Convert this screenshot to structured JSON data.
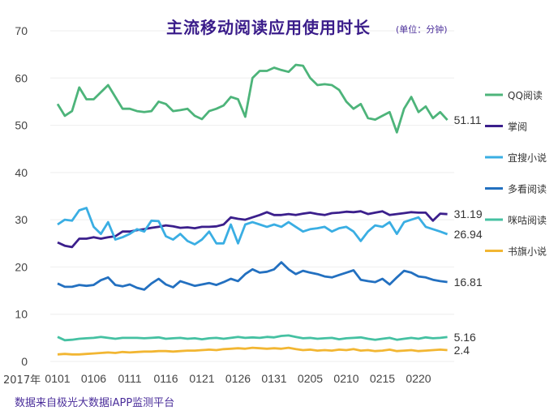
{
  "chart_data": {
    "type": "line",
    "title": "主流移动阅读应用使用时长",
    "unit": "(单位：分钟)",
    "source": "数据来自极光大数据iAPP监测平台",
    "x_prefix": "2017年",
    "x_tick_labels": [
      "0101",
      "0106",
      "0111",
      "0116",
      "0121",
      "0126",
      "0131",
      "0205",
      "0210",
      "0215",
      "0220"
    ],
    "x_start": "0101",
    "x_end": "0224",
    "ylim": [
      0,
      70
    ],
    "y_ticks": [
      "0",
      "10",
      "20",
      "30",
      "40",
      "50",
      "60",
      "70"
    ],
    "grid": true,
    "legend_position": "right",
    "series": [
      {
        "name": "QQ阅读",
        "color": "#4db47a",
        "end_label": "51.11",
        "values": [
          54.5,
          52,
          53,
          58,
          55.5,
          55.5,
          57,
          58.5,
          56,
          53.5,
          53.5,
          53,
          52.8,
          53,
          55,
          54.5,
          53,
          53.2,
          53.5,
          52,
          51.3,
          53,
          53.5,
          54.2,
          56,
          55.5,
          51.8,
          60,
          61.5,
          61.5,
          62.2,
          61.7,
          61.3,
          62.8,
          62.6,
          60,
          58.5,
          58.7,
          58.5,
          57.5,
          55,
          53.5,
          54.5,
          51.5,
          51.2,
          52,
          52.8,
          48.5,
          53.5,
          56,
          52.8,
          54,
          51.5,
          52.8,
          51.11
        ]
      },
      {
        "name": "掌阅",
        "color": "#3b1f8c",
        "end_label": "31.19",
        "values": [
          25.2,
          24.5,
          24.2,
          26,
          26,
          26.3,
          26,
          26.3,
          26.5,
          27.5,
          27.5,
          27.8,
          28,
          28.3,
          28.5,
          28.8,
          28.6,
          28.3,
          28.4,
          28.2,
          28.5,
          28.5,
          28.6,
          29,
          30.5,
          30.2,
          30,
          30.5,
          31,
          31.6,
          31,
          31,
          31.2,
          31,
          31.3,
          31.5,
          31.2,
          31,
          31.4,
          31.5,
          31.7,
          31.6,
          31.8,
          31.2,
          31.5,
          31.8,
          31,
          31.2,
          31.4,
          31.6,
          31.5,
          31.5,
          29.8,
          31.3,
          31.19
        ]
      },
      {
        "name": "宜搜小说",
        "color": "#3aaee3",
        "end_label": "26.94",
        "values": [
          29,
          30,
          29.8,
          32,
          32.5,
          28.5,
          27,
          29.5,
          25.8,
          26.3,
          27,
          28,
          27.5,
          29.8,
          29.7,
          26.5,
          25.8,
          27,
          25.5,
          24.8,
          25.8,
          27.5,
          25,
          25,
          29,
          25,
          29,
          29.5,
          29,
          28.5,
          29,
          28.5,
          29.5,
          28.5,
          27.5,
          28,
          28.2,
          28.5,
          27.5,
          28.2,
          28.5,
          27.5,
          25.5,
          27.5,
          28.8,
          28.5,
          29.5,
          27,
          29.5,
          30,
          30.5,
          28.5,
          28,
          27.5,
          26.94
        ]
      },
      {
        "name": "多看阅读",
        "color": "#2370c0",
        "end_label": "16.81",
        "values": [
          16.5,
          15.8,
          15.8,
          16.2,
          16,
          16.2,
          17.2,
          17.8,
          16.2,
          15.9,
          16.3,
          15.6,
          15.2,
          16.5,
          17.5,
          16.3,
          15.7,
          17,
          16.5,
          16,
          16.3,
          16.6,
          16.2,
          16.8,
          17.5,
          17,
          18.5,
          19.5,
          18.8,
          19,
          19.5,
          21,
          19.5,
          18.5,
          19.2,
          18.8,
          18.5,
          18,
          17.8,
          18.3,
          18.8,
          19.3,
          17.3,
          17,
          16.8,
          17.5,
          16.3,
          17.8,
          19.2,
          18.8,
          18,
          17.8,
          17.3,
          17,
          16.81
        ]
      },
      {
        "name": "咪咕阅读",
        "color": "#45c1a2",
        "end_label": "5.16",
        "values": [
          5.2,
          4.5,
          4.6,
          4.8,
          4.9,
          5,
          5.2,
          5,
          4.8,
          5,
          5,
          5,
          4.9,
          5,
          5.1,
          4.8,
          4.9,
          5,
          4.8,
          4.9,
          4.7,
          4.9,
          5,
          4.8,
          5,
          5.2,
          5,
          5.1,
          5,
          5.2,
          5.1,
          5.4,
          5.5,
          5.2,
          4.9,
          5,
          4.8,
          4.9,
          5,
          4.7,
          4.9,
          5,
          5.1,
          4.8,
          4.6,
          4.8,
          5,
          4.6,
          4.8,
          5,
          4.8,
          5.1,
          4.9,
          5,
          5.16
        ]
      },
      {
        "name": "书旗小说",
        "color": "#f2b632",
        "end_label": "2.4",
        "values": [
          1.5,
          1.6,
          1.5,
          1.5,
          1.6,
          1.7,
          1.8,
          1.9,
          1.8,
          2,
          1.9,
          2,
          2.1,
          2.1,
          2.2,
          2.2,
          2.1,
          2.2,
          2.3,
          2.3,
          2.4,
          2.5,
          2.4,
          2.6,
          2.7,
          2.8,
          2.7,
          2.9,
          2.8,
          2.7,
          2.8,
          2.7,
          2.9,
          2.6,
          2.4,
          2.5,
          2.3,
          2.4,
          2.3,
          2.5,
          2.4,
          2.6,
          2.3,
          2.4,
          2.2,
          2.3,
          2.5,
          2.2,
          2.3,
          2.4,
          2.2,
          2.3,
          2.4,
          2.5,
          2.4
        ]
      }
    ]
  }
}
